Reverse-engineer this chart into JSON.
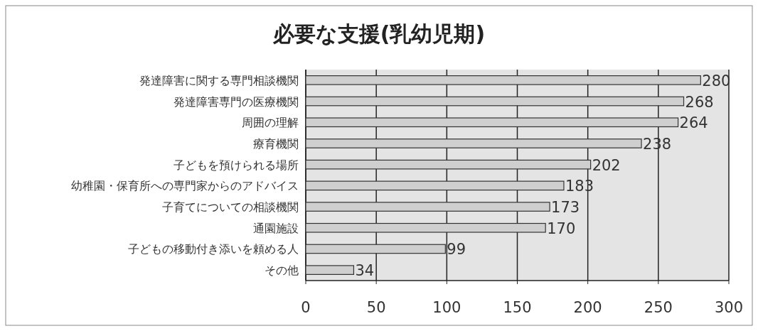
{
  "chart_data": {
    "type": "bar",
    "orientation": "horizontal",
    "title": "必要な支援(乳幼児期)",
    "categories": [
      "発達障害に関する専門相談機関",
      "発達障害専門の医療機関",
      "周囲の理解",
      "療育機関",
      "子どもを預けられる場所",
      "幼稚園・保育所への専門家からのアドバイス",
      "子育てについての相談機関",
      "通園施設",
      "子どもの移動付き添いを頼める人",
      "その他"
    ],
    "values": [
      280,
      268,
      264,
      238,
      202,
      183,
      173,
      170,
      99,
      34
    ],
    "color": "#cfcfcf",
    "xlim": [
      0,
      300
    ],
    "xticks": [
      0,
      50,
      100,
      150,
      200,
      250,
      300
    ],
    "grid": "x",
    "data_labels": true
  }
}
